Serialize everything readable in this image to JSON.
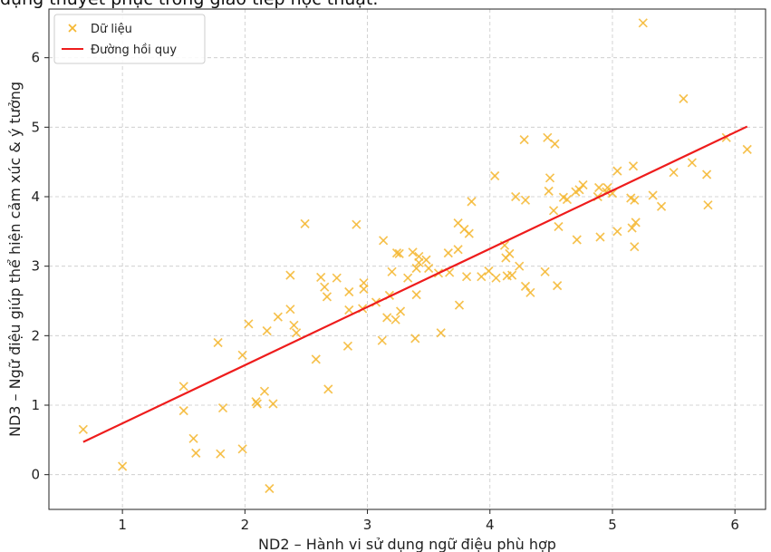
{
  "page_title": "dụng thuyết phục trong giao tiếp học thuật.",
  "colors": {
    "points": "#f5b731",
    "regression": "#ee1c1c",
    "grid": "#c8c8c8",
    "frame": "#222222"
  },
  "chart_data": {
    "type": "scatter",
    "title": "",
    "xlabel": "ND2 – Hành vi sử dụng ngữ điệu phù hợp",
    "ylabel": "ND3 – Ngữ điệu giúp thể hiện cảm xúc & ý tưởng",
    "xlim": [
      0.4,
      6.25
    ],
    "ylim": [
      -0.5,
      6.7
    ],
    "x_ticks": [
      "1",
      "2",
      "3",
      "4",
      "5",
      "6"
    ],
    "y_ticks": [
      "0",
      "1",
      "2",
      "3",
      "4",
      "5",
      "6"
    ],
    "grid": true,
    "legend_placement": "top-left",
    "series": [
      {
        "name": "Dữ liệu",
        "marker": "x",
        "points": [
          [
            0.68,
            0.65
          ],
          [
            1.0,
            0.12
          ],
          [
            1.5,
            1.27
          ],
          [
            1.5,
            0.92
          ],
          [
            1.58,
            0.52
          ],
          [
            1.6,
            0.31
          ],
          [
            1.78,
            1.9
          ],
          [
            1.8,
            0.3
          ],
          [
            1.82,
            0.96
          ],
          [
            1.98,
            0.37
          ],
          [
            1.98,
            1.72
          ],
          [
            2.03,
            2.17
          ],
          [
            2.09,
            1.05
          ],
          [
            2.1,
            1.02
          ],
          [
            2.16,
            1.2
          ],
          [
            2.18,
            2.07
          ],
          [
            2.2,
            -0.2
          ],
          [
            2.23,
            1.02
          ],
          [
            2.27,
            2.27
          ],
          [
            2.37,
            2.38
          ],
          [
            2.37,
            2.87
          ],
          [
            2.4,
            2.15
          ],
          [
            2.42,
            2.04
          ],
          [
            2.49,
            3.61
          ],
          [
            2.58,
            1.66
          ],
          [
            2.62,
            2.84
          ],
          [
            2.65,
            2.7
          ],
          [
            2.67,
            2.56
          ],
          [
            2.68,
            1.23
          ],
          [
            2.75,
            2.83
          ],
          [
            2.84,
            1.85
          ],
          [
            2.85,
            2.37
          ],
          [
            2.85,
            2.63
          ],
          [
            2.91,
            3.6
          ],
          [
            2.96,
            2.39
          ],
          [
            2.97,
            2.67
          ],
          [
            2.97,
            2.76
          ],
          [
            3.07,
            2.48
          ],
          [
            3.12,
            1.93
          ],
          [
            3.13,
            3.37
          ],
          [
            3.16,
            2.26
          ],
          [
            3.18,
            2.58
          ],
          [
            3.2,
            2.92
          ],
          [
            3.23,
            2.23
          ],
          [
            3.24,
            3.19
          ],
          [
            3.26,
            3.18
          ],
          [
            3.27,
            2.35
          ],
          [
            3.33,
            2.83
          ],
          [
            3.37,
            3.2
          ],
          [
            3.39,
            1.96
          ],
          [
            3.4,
            2.59
          ],
          [
            3.4,
            2.97
          ],
          [
            3.42,
            3.05
          ],
          [
            3.42,
            3.14
          ],
          [
            3.48,
            3.09
          ],
          [
            3.58,
            2.9
          ],
          [
            3.6,
            2.04
          ],
          [
            3.66,
            3.19
          ],
          [
            3.67,
            2.91
          ],
          [
            3.74,
            3.62
          ],
          [
            3.74,
            3.24
          ],
          [
            3.75,
            2.44
          ],
          [
            3.79,
            3.53
          ],
          [
            3.81,
            2.85
          ],
          [
            3.83,
            3.47
          ],
          [
            3.85,
            3.93
          ],
          [
            3.93,
            2.85
          ],
          [
            3.99,
            2.93
          ],
          [
            4.04,
            4.3
          ],
          [
            4.05,
            2.83
          ],
          [
            4.12,
            3.3
          ],
          [
            4.13,
            3.12
          ],
          [
            4.14,
            2.86
          ],
          [
            4.16,
            3.18
          ],
          [
            4.18,
            2.87
          ],
          [
            4.21,
            4.0
          ],
          [
            4.24,
            3.0
          ],
          [
            4.28,
            4.82
          ],
          [
            4.29,
            3.95
          ],
          [
            4.29,
            2.71
          ],
          [
            4.33,
            2.62
          ],
          [
            4.45,
            2.92
          ],
          [
            4.47,
            4.85
          ],
          [
            4.48,
            4.08
          ],
          [
            4.49,
            4.27
          ],
          [
            4.52,
            3.8
          ],
          [
            4.53,
            4.76
          ],
          [
            4.55,
            2.72
          ],
          [
            4.56,
            3.57
          ],
          [
            4.63,
            3.96
          ],
          [
            4.7,
            4.07
          ],
          [
            4.71,
            3.38
          ],
          [
            4.73,
            4.1
          ],
          [
            4.76,
            4.17
          ],
          [
            4.88,
            4.0
          ],
          [
            4.89,
            4.13
          ],
          [
            4.9,
            3.42
          ],
          [
            4.96,
            4.13
          ],
          [
            5.0,
            4.05
          ],
          [
            5.04,
            3.5
          ],
          [
            5.04,
            4.37
          ],
          [
            5.15,
            3.98
          ],
          [
            5.17,
            4.44
          ],
          [
            5.18,
            3.28
          ],
          [
            5.18,
            3.95
          ],
          [
            5.19,
            3.63
          ],
          [
            5.25,
            6.5
          ],
          [
            5.33,
            4.02
          ],
          [
            5.4,
            3.86
          ],
          [
            5.5,
            4.35
          ],
          [
            5.58,
            5.41
          ],
          [
            5.65,
            4.49
          ],
          [
            5.77,
            4.32
          ],
          [
            5.78,
            3.88
          ],
          [
            5.93,
            4.85
          ],
          [
            6.1,
            4.68
          ],
          [
            5.16,
            3.55
          ],
          [
            4.6,
            3.99
          ],
          [
            3.5,
            2.97
          ],
          [
            4.95,
            4.07
          ]
        ]
      },
      {
        "name": "Đường hồi quy",
        "type": "line",
        "x": [
          0.68,
          6.1
        ],
        "y": [
          0.47,
          5.01
        ]
      }
    ]
  }
}
